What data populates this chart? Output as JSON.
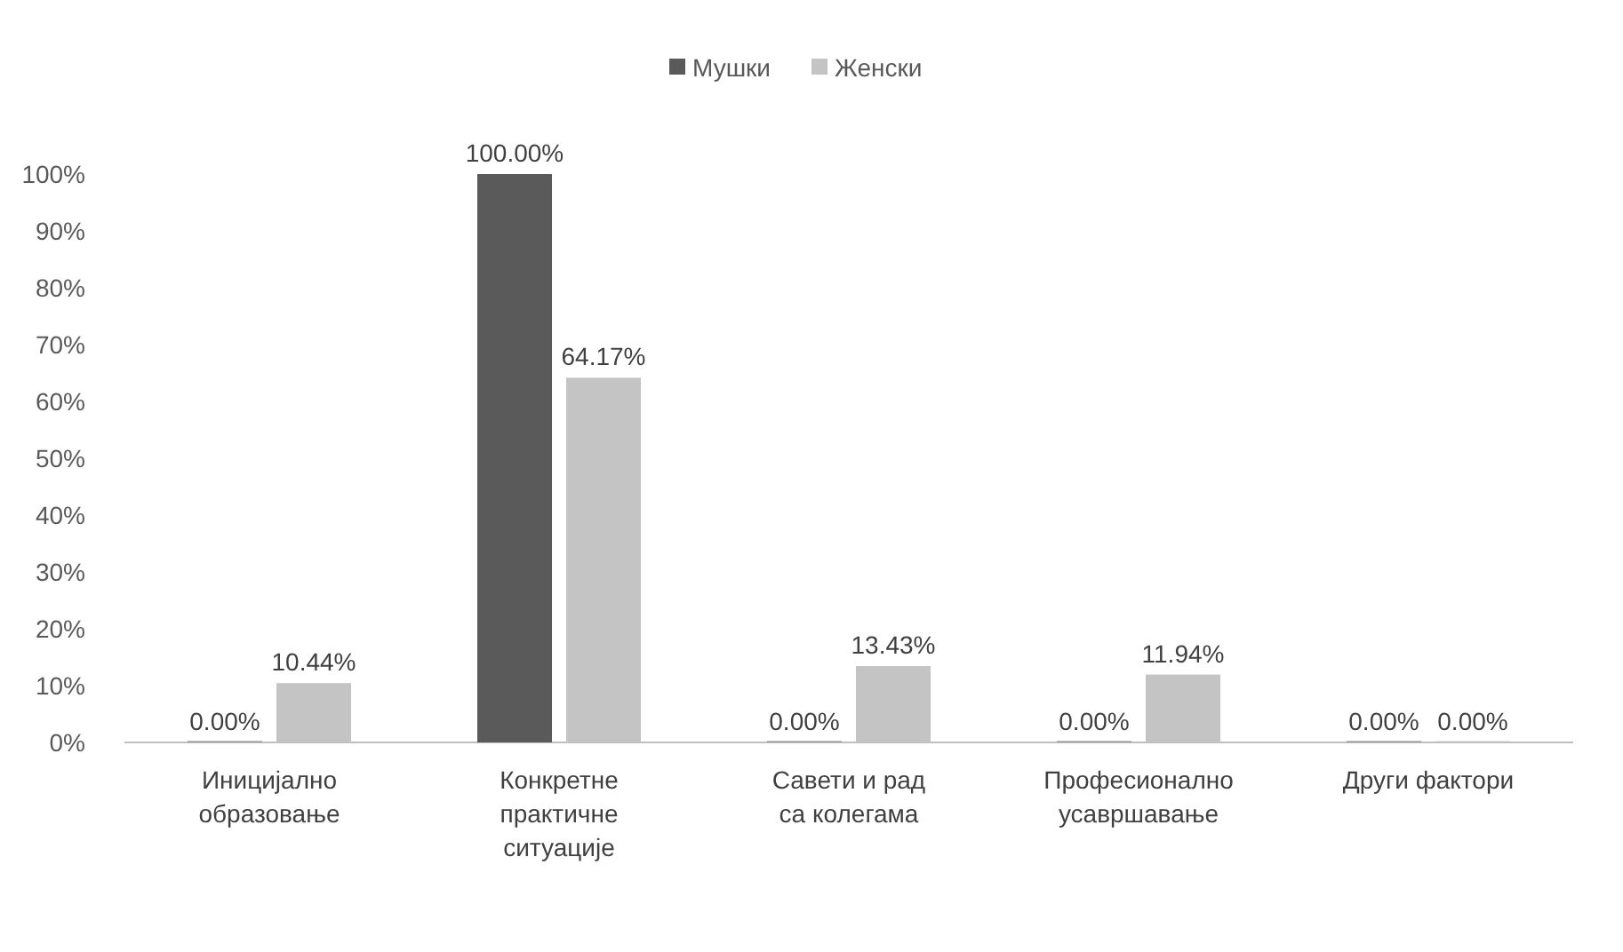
{
  "chart_data": {
    "type": "bar",
    "categories": [
      "Иницијално образовање",
      "Конкретне практичне ситуације",
      "Савети и рад са колегама",
      "Професионално усавршавање",
      "Други фактори"
    ],
    "series": [
      {
        "name": "Мушки",
        "color": "#5a5a5a",
        "values": [
          0,
          100,
          0,
          0,
          0
        ],
        "value_labels": [
          "0.00%",
          "100.00%",
          "0.00%",
          "0.00%",
          "0.00%"
        ]
      },
      {
        "name": "Женски",
        "color": "#c4c4c4",
        "values": [
          10.44,
          64.17,
          13.43,
          11.94,
          0
        ],
        "value_labels": [
          "10.44%",
          "64.17%",
          "13.43%",
          "11.94%",
          "0.00%"
        ]
      }
    ],
    "ylim": [
      0,
      100
    ],
    "yticks": [
      {
        "value": 0,
        "label": "0%"
      },
      {
        "value": 10,
        "label": "10%"
      },
      {
        "value": 20,
        "label": "20%"
      },
      {
        "value": 30,
        "label": "30%"
      },
      {
        "value": 40,
        "label": "40%"
      },
      {
        "value": 50,
        "label": "50%"
      },
      {
        "value": 60,
        "label": "60%"
      },
      {
        "value": 70,
        "label": "70%"
      },
      {
        "value": 80,
        "label": "80%"
      },
      {
        "value": 90,
        "label": "90%"
      },
      {
        "value": 100,
        "label": "100%"
      }
    ],
    "grid": false,
    "legend": "top"
  }
}
